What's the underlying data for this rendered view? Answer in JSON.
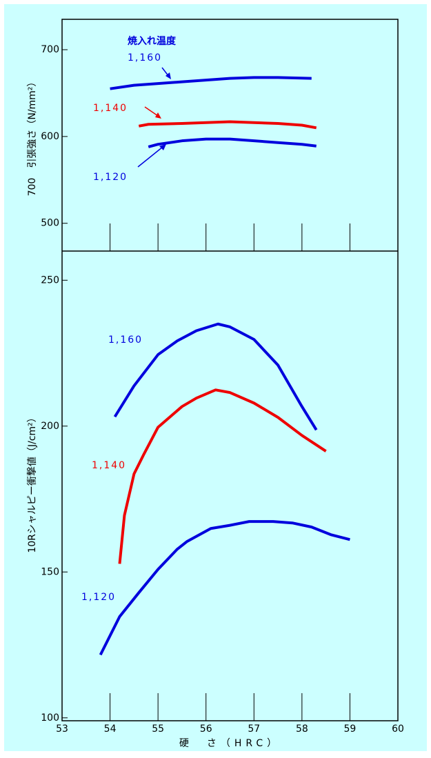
{
  "chart_data": [
    {
      "type": "line",
      "ylabel": "700　引張強さ（N/mm²）",
      "legend_title": "焼入れ温度",
      "xlim": [
        53,
        60
      ],
      "xticks": [
        54,
        55,
        56,
        57,
        58,
        59
      ],
      "ylim": [
        468,
        735
      ],
      "yticks": [
        500,
        600,
        700
      ],
      "series": [
        {
          "name": "1,160",
          "color": "#0000dd",
          "x": [
            54,
            54.5,
            55,
            55.5,
            56,
            56.5,
            57,
            57.5,
            58.2
          ],
          "values": [
            655,
            659,
            661,
            663,
            665,
            667,
            668,
            668,
            667
          ]
        },
        {
          "name": "1,140",
          "color": "#ee0000",
          "x": [
            54.6,
            54.8,
            55.5,
            56,
            56.5,
            57,
            57.5,
            58,
            58.3
          ],
          "values": [
            612,
            614,
            615,
            616,
            617,
            616,
            615,
            613,
            610
          ]
        },
        {
          "name": "1,120",
          "color": "#0000dd",
          "x": [
            54.8,
            55,
            55.5,
            56,
            56.5,
            57,
            57.5,
            58,
            58.3
          ],
          "values": [
            588,
            591,
            595,
            597,
            597,
            595,
            593,
            591,
            589
          ]
        }
      ]
    },
    {
      "type": "line",
      "ylabel": "10Rシャルピー衝撃値（J/cm²）",
      "xlabel": "硬　さ（HRC）",
      "xlim": [
        53,
        60
      ],
      "xticks": [
        53,
        54,
        55,
        56,
        57,
        58,
        59,
        60
      ],
      "ylim": [
        99,
        260
      ],
      "yticks": [
        100,
        150,
        200,
        250
      ],
      "series": [
        {
          "name": "1,160",
          "color": "#0000dd",
          "x": [
            54.1,
            54.5,
            55,
            55.4,
            55.8,
            56.25,
            56.5,
            57,
            57.5,
            58,
            58.3
          ],
          "values": [
            203.2,
            213.8,
            224.5,
            229.2,
            232.7,
            235,
            234,
            229.7,
            220.9,
            206.7,
            198.7
          ]
        },
        {
          "name": "1,140",
          "color": "#ee0000",
          "x": [
            54.2,
            54.3,
            54.5,
            54.7,
            55,
            55.5,
            55.8,
            56.2,
            56.5,
            57,
            57.5,
            58,
            58.5
          ],
          "values": [
            152.8,
            169.4,
            183.6,
            190.2,
            199.6,
            206.7,
            209.6,
            212.4,
            211.5,
            207.9,
            203,
            196.8,
            191.4
          ]
        },
        {
          "name": "1,120",
          "color": "#0000dd",
          "x": [
            53.8,
            54.2,
            54.6,
            55,
            55.4,
            55.6,
            56.1,
            56.5,
            56.9,
            57.4,
            57.8,
            58.2,
            58.6,
            59
          ],
          "values": [
            121.6,
            134.7,
            142.9,
            150.9,
            157.8,
            160.4,
            164.9,
            166,
            167.3,
            167.3,
            166.8,
            165.4,
            162.8,
            161.1
          ]
        }
      ]
    }
  ]
}
